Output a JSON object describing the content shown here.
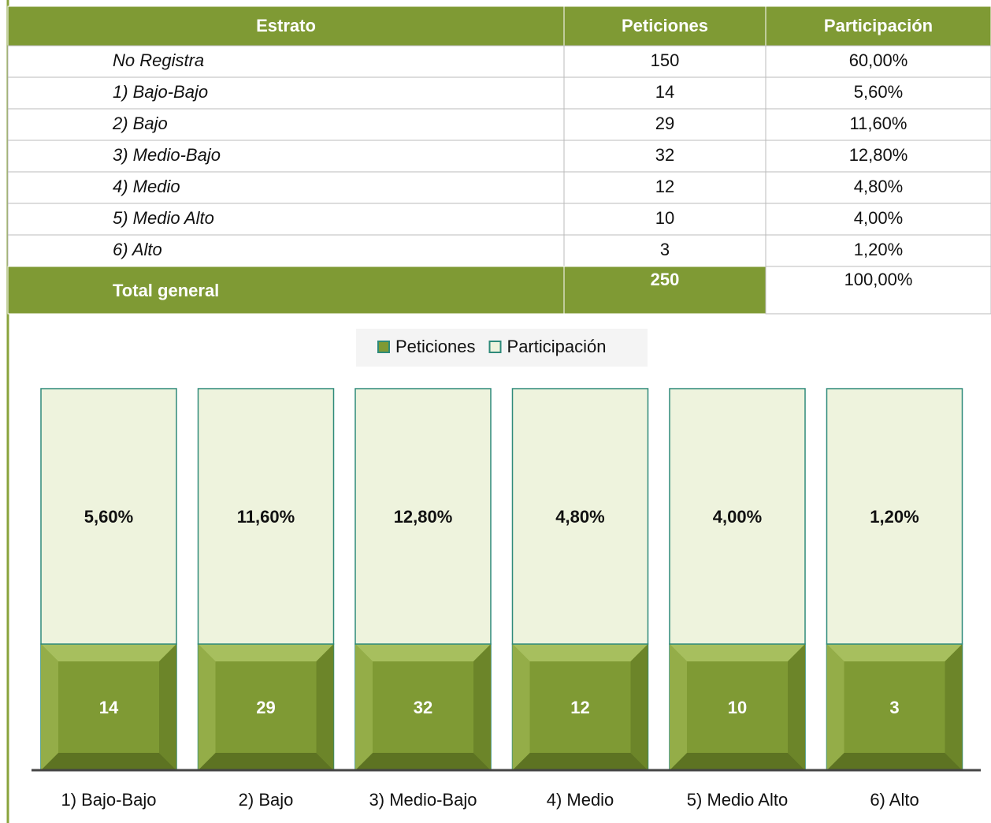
{
  "table": {
    "headers": [
      "Estrato",
      "Peticiones",
      "Participación"
    ],
    "rows": [
      [
        "No Registra",
        "150",
        "60,00%"
      ],
      [
        "1) Bajo-Bajo",
        "14",
        "5,60%"
      ],
      [
        "2) Bajo",
        "29",
        "11,60%"
      ],
      [
        "3) Medio-Bajo",
        "32",
        "12,80%"
      ],
      [
        "4) Medio",
        "12",
        "4,80%"
      ],
      [
        "5) Medio Alto",
        "10",
        "4,00%"
      ],
      [
        "6) Alto",
        "3",
        "1,20%"
      ]
    ],
    "total": [
      "Total general",
      "250",
      "100,00%"
    ]
  },
  "chart_data": {
    "type": "bar",
    "stacked": true,
    "categories": [
      "1) Bajo-Bajo",
      "2) Bajo",
      "3) Medio-Bajo",
      "4) Medio",
      "5) Medio Alto",
      "6) Alto"
    ],
    "series": [
      {
        "name": "Peticiones",
        "color": "#7f9a34",
        "values": [
          14,
          29,
          32,
          12,
          10,
          3
        ]
      },
      {
        "name": "Participación",
        "color": "#eef3dd",
        "values": [
          5.6,
          11.6,
          12.8,
          4.8,
          4.0,
          1.2
        ],
        "value_labels": [
          "5,60%",
          "11,60%",
          "12,80%",
          "4,80%",
          "4,00%",
          "1,20%"
        ]
      }
    ]
  }
}
